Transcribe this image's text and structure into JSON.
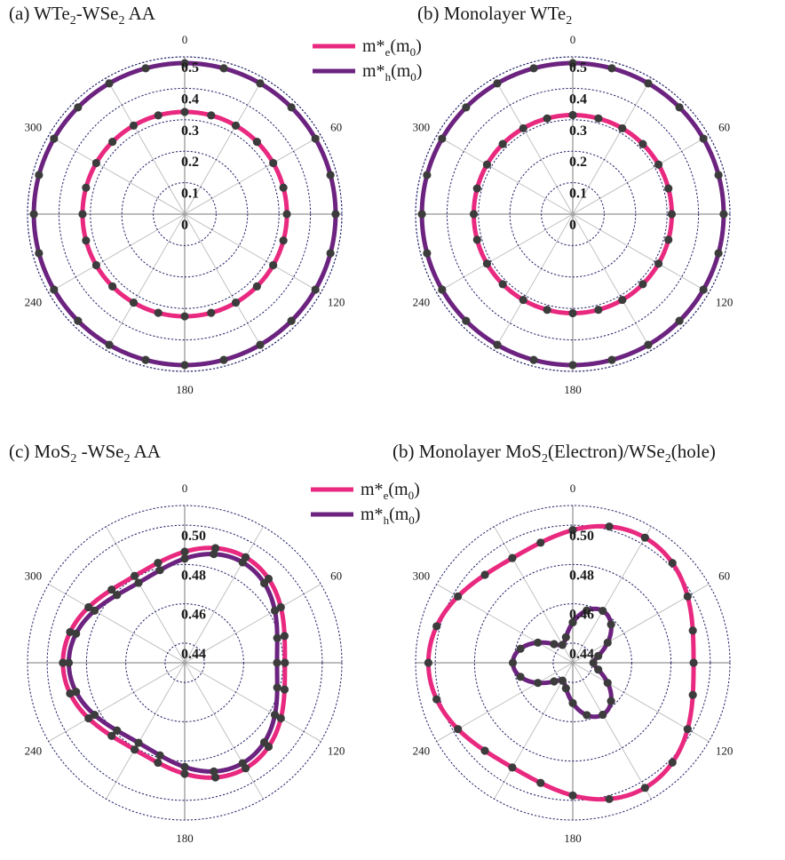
{
  "colors": {
    "electron": "#e8297f",
    "hole": "#6c2380",
    "marker": "#3c3c3c",
    "grid_circle": "#1d1d66",
    "spoke": "#b4b4b4",
    "axis": "#7a7a7a"
  },
  "legend_top": {
    "electron": {
      "base": "m*",
      "sub": "e",
      "tail": "(m",
      "tailsub": "0",
      "end": ")"
    },
    "hole": {
      "base": "m*",
      "sub": "h",
      "tail": "(m",
      "tailsub": "0",
      "end": ")"
    }
  },
  "legend_bottom": {
    "electron": {
      "base": "m*",
      "sub": "e",
      "tail": "(m",
      "tailsub": "0",
      "end": ")"
    },
    "hole": {
      "base": "m*",
      "sub": "h",
      "tail": "(m",
      "tailsub": "0",
      "end": ")"
    }
  },
  "chart_data": [
    {
      "type": "polar-line",
      "title": {
        "parts": [
          "(a) WTe",
          "2",
          "-WSe",
          "2",
          "    AA"
        ]
      },
      "angle_ticks": [
        "0",
        "60",
        "120",
        "180",
        "240",
        "300"
      ],
      "radial_ticks": [
        "0",
        "0.1",
        "0.2",
        "0.3",
        "0.4",
        "0.5"
      ],
      "rlim": [
        0,
        0.5
      ],
      "series": [
        {
          "key": "electron",
          "profile": {
            "mean": 0.325,
            "amp": 0.0
          }
        },
        {
          "key": "hole",
          "profile": {
            "mean": 0.48,
            "amp": 0.0
          }
        }
      ]
    },
    {
      "type": "polar-line",
      "title": {
        "parts": [
          "(b) Monolayer WTe",
          "2"
        ]
      },
      "angle_ticks": [
        "0",
        "60",
        "120",
        "180",
        "240",
        "300"
      ],
      "radial_ticks": [
        "0",
        "0.1",
        "0.2",
        "0.3",
        "0.4",
        "0.5"
      ],
      "rlim": [
        0,
        0.5
      ],
      "series": [
        {
          "key": "electron",
          "profile": {
            "mean": 0.315,
            "amp": 0.0
          }
        },
        {
          "key": "hole",
          "profile": {
            "mean": 0.48,
            "amp": 0.0
          }
        }
      ]
    },
    {
      "type": "polar-line",
      "title": {
        "parts": [
          "(c) MoS",
          "2",
          " -WSe",
          "2",
          "    AA"
        ]
      },
      "angle_ticks": [
        "0",
        "60",
        "120",
        "180",
        "240",
        "300"
      ],
      "radial_ticks": [
        "0.44",
        "0.46",
        "0.48",
        "0.50"
      ],
      "rlim": [
        0.43,
        0.51
      ],
      "series": [
        {
          "key": "electron",
          "profile": {
            "mean": 0.4865,
            "amp": 0.0055
          }
        },
        {
          "key": "hole",
          "profile": {
            "mean": 0.483,
            "amp": 0.006
          }
        }
      ]
    },
    {
      "type": "polar-line",
      "title": {
        "parts": [
          "(b)  Monolayer MoS",
          "2",
          "(Electron)/WSe",
          "2",
          "(hole)"
        ]
      },
      "angle_ticks": [
        "0",
        "60",
        "120",
        "180",
        "240",
        "300"
      ],
      "radial_ticks": [
        "0.44",
        "0.46",
        "0.48",
        "0.50"
      ],
      "rlim": [
        0.43,
        0.51
      ],
      "series": [
        {
          "key": "electron",
          "profile": {
            "mean": 0.4975,
            "amp": 0.006
          }
        },
        {
          "key": "hole",
          "profile": {
            "mean": 0.4505,
            "amp": 0.01
          }
        }
      ]
    }
  ]
}
